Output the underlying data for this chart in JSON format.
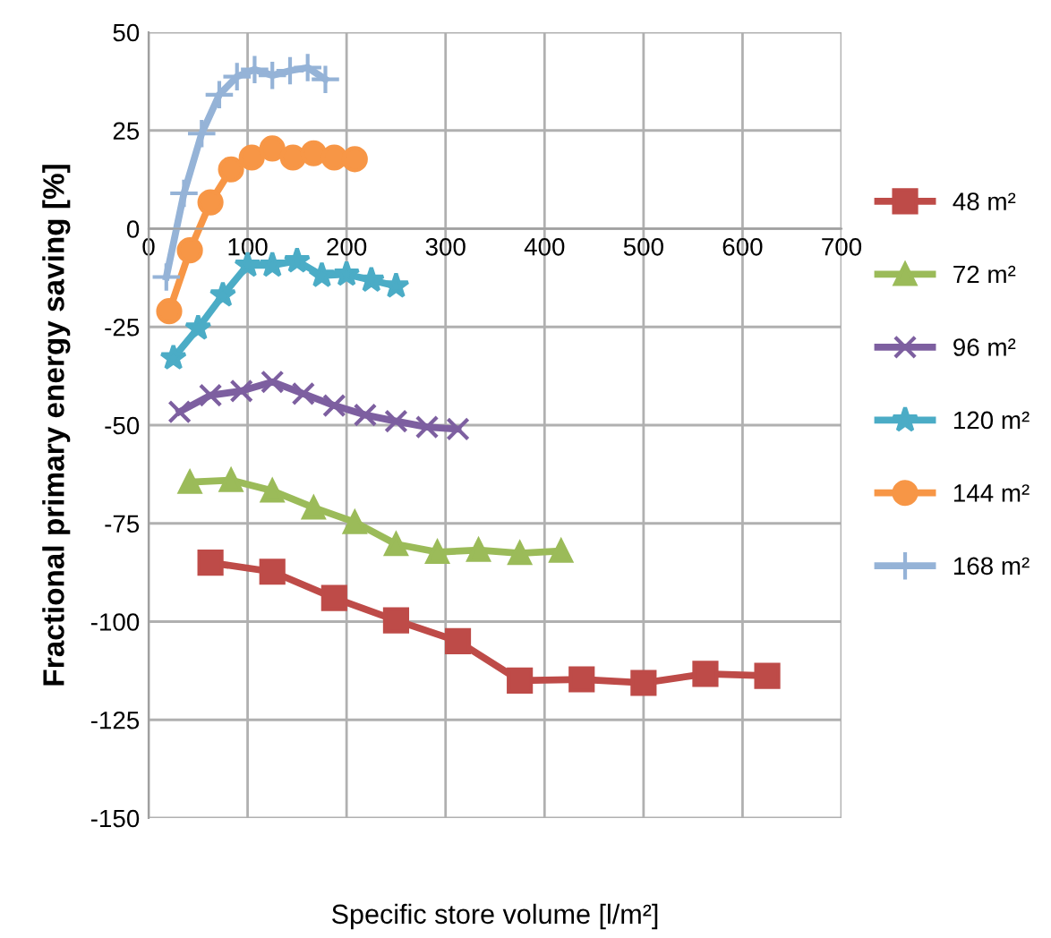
{
  "chart_data": {
    "type": "line",
    "xlabel": "Specific store volume [l/m²]",
    "ylabel": "Fractional primary energy saving [%]",
    "xlim": [
      0,
      700
    ],
    "xticks": [
      0,
      100,
      200,
      300,
      400,
      500,
      600,
      700
    ],
    "ylim": [
      -150,
      50
    ],
    "yticks": [
      -150,
      -125,
      -100,
      -75,
      -50,
      -25,
      0,
      25,
      50
    ],
    "grid": true,
    "legend": "right",
    "line_style": "solid",
    "series": [
      {
        "name": "48 m²",
        "color": "#be4b48",
        "marker": "square",
        "x": [
          62.5,
          125,
          187.5,
          250,
          312.5,
          375,
          437.5,
          500,
          562.5,
          625
        ],
        "values": [
          -85,
          -87.3,
          -94,
          -99.7,
          -105,
          -115,
          -114.7,
          -115.6,
          -113.3,
          -113.8
        ]
      },
      {
        "name": "72 m²",
        "color": "#9bbb59",
        "marker": "triangle",
        "x": [
          41.7,
          83.3,
          125,
          166.7,
          208.3,
          250,
          291.7,
          333.3,
          375,
          416.7
        ],
        "values": [
          -64.5,
          -64,
          -66.7,
          -71,
          -74.7,
          -80.3,
          -82.3,
          -81.8,
          -82.6,
          -82
        ]
      },
      {
        "name": "96 m²",
        "color": "#7d5fa0",
        "marker": "cross",
        "x": [
          31.3,
          62.5,
          93.8,
          125,
          156.3,
          187.5,
          218.8,
          250,
          281.3,
          312.5
        ],
        "values": [
          -46.6,
          -42.4,
          -41.3,
          -39,
          -42,
          -45,
          -47.4,
          -49,
          -50.5,
          -51
        ]
      },
      {
        "name": "120 m²",
        "color": "#4bacc6",
        "marker": "star",
        "x": [
          25,
          50,
          75,
          100,
          125,
          150,
          175,
          200,
          225,
          250
        ],
        "values": [
          -32.9,
          -25.3,
          -16.9,
          -9.3,
          -9.3,
          -8.2,
          -11.9,
          -11.6,
          -13.1,
          -14.6
        ]
      },
      {
        "name": "144 m²",
        "color": "#f79646",
        "marker": "circle",
        "x": [
          20.8,
          41.7,
          62.5,
          83.3,
          104.2,
          125,
          145.8,
          166.7,
          187.5,
          208.3
        ],
        "values": [
          -21,
          -5.5,
          6.7,
          15.1,
          18.1,
          20.4,
          18.1,
          19.2,
          18.1,
          17.7
        ]
      },
      {
        "name": "168 m²",
        "color": "#95b3d7",
        "marker": "plus",
        "x": [
          17.9,
          35.7,
          53.6,
          71.4,
          89.3,
          107.1,
          125,
          142.9,
          160.7,
          178.6
        ],
        "values": [
          -12.3,
          9,
          24.2,
          34.1,
          38.7,
          40.5,
          39,
          40.2,
          41,
          38
        ]
      }
    ]
  }
}
